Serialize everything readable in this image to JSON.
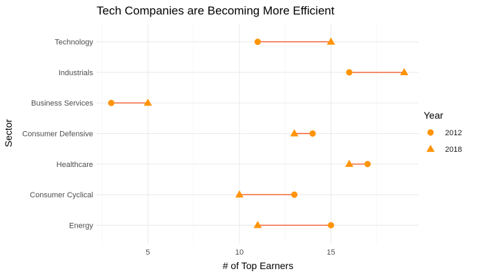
{
  "chart_data": {
    "type": "dumbbell",
    "title": "Tech Companies are Becoming More Efficient",
    "xlabel": "# of Top Earners",
    "ylabel": "Sector",
    "xlim": [
      2.2,
      19.8
    ],
    "x_ticks": [
      5,
      10,
      15
    ],
    "x_minor_ticks": [
      2.5,
      7.5,
      12.5,
      17.5
    ],
    "grid": true,
    "legend_position": "right",
    "categories": [
      "Technology",
      "Industrials",
      "Business Services",
      "Consumer Defensive",
      "Healthcare",
      "Consumer Cyclical",
      "Energy"
    ],
    "series": [
      {
        "name": "2012",
        "marker": "circle",
        "values": [
          11,
          16,
          3,
          14,
          17,
          13,
          15
        ]
      },
      {
        "name": "2018",
        "marker": "triangle",
        "values": [
          15,
          19,
          5,
          13,
          16,
          10,
          11
        ]
      }
    ],
    "legend": {
      "title": "Year"
    },
    "colors": {
      "point": "#ff9408",
      "segment": "#f05a28"
    }
  }
}
